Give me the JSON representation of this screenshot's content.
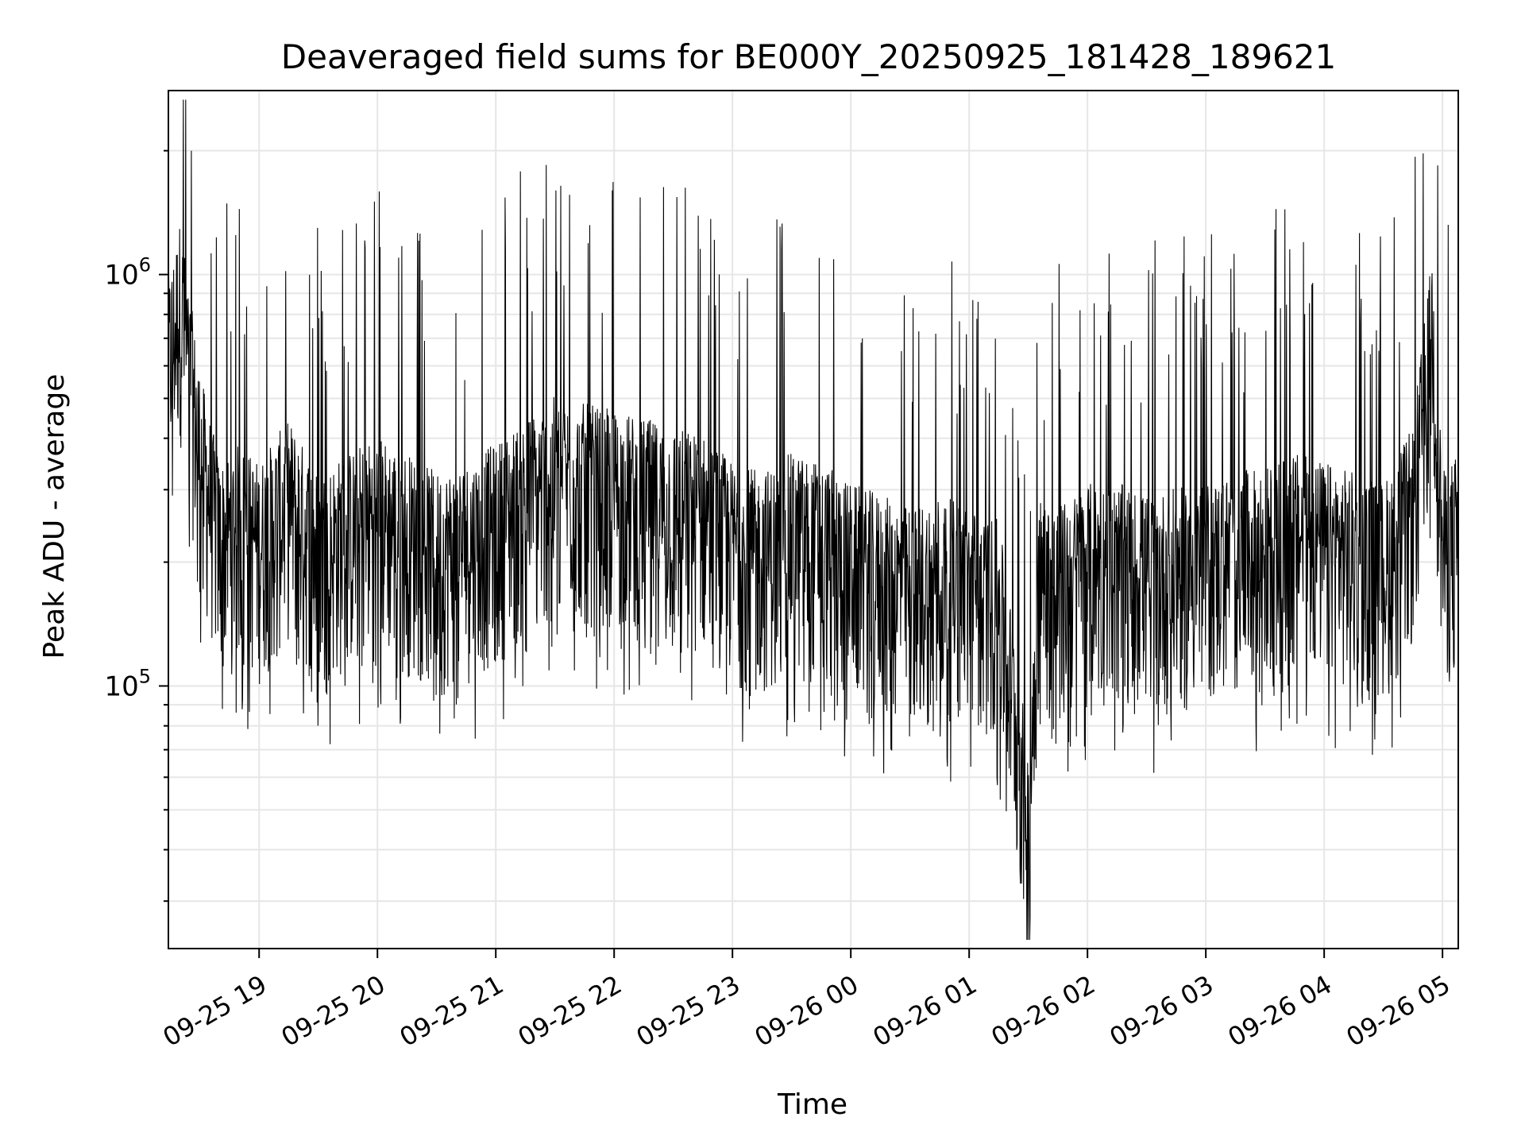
{
  "chart_data": {
    "type": "line",
    "title": "Deaveraged field sums for BE000Y_20250925_181428_189621",
    "xlabel": "Time",
    "ylabel": "Peak ADU - average",
    "yscale": "log",
    "grid": true,
    "color": "#000000",
    "x_ticks": [
      "09-25 19",
      "09-25 20",
      "09-25 21",
      "09-25 22",
      "09-25 23",
      "09-26 00",
      "09-26 01",
      "09-26 02",
      "09-26 03",
      "09-26 04",
      "09-26 05"
    ],
    "x_range": [
      "09-25 18:14",
      "09-26 05:08"
    ],
    "y_ticks": [
      {
        "base": "10",
        "exp": "5",
        "value": 100000
      },
      {
        "base": "10",
        "exp": "6",
        "value": 1000000
      }
    ],
    "ylim": [
      23000,
      2800000
    ],
    "series": [
      {
        "x": [
          "09-25 18:14",
          "09-25 18:20",
          "09-25 18:30",
          "09-25 18:40",
          "09-25 18:50",
          "09-25 19:00",
          "09-25 19:15",
          "09-25 19:30",
          "09-25 19:45",
          "09-25 20:00",
          "09-25 20:15",
          "09-25 20:30",
          "09-25 20:45",
          "09-25 21:00",
          "09-25 21:15",
          "09-25 21:30",
          "09-25 21:45",
          "09-25 22:00",
          "09-25 22:15",
          "09-25 22:30",
          "09-25 22:45",
          "09-25 23:00",
          "09-25 23:15",
          "09-25 23:30",
          "09-25 23:45",
          "09-26 00:00",
          "09-26 00:15",
          "09-26 00:30",
          "09-26 00:45",
          "09-26 01:00",
          "09-26 01:15",
          "09-26 01:25",
          "09-26 01:30",
          "09-26 01:35",
          "09-26 01:45",
          "09-26 02:00",
          "09-26 02:15",
          "09-26 02:30",
          "09-26 02:45",
          "09-26 03:00",
          "09-26 03:15",
          "09-26 03:30",
          "09-26 03:45",
          "09-26 04:00",
          "09-26 04:15",
          "09-26 04:30",
          "09-26 04:45",
          "09-26 04:55",
          "09-26 05:00",
          "09-26 05:08"
        ],
        "values": [
          500000,
          700000,
          300000,
          180000,
          200000,
          180000,
          230000,
          170000,
          190000,
          210000,
          190000,
          170000,
          180000,
          200000,
          230000,
          260000,
          250000,
          240000,
          230000,
          220000,
          210000,
          180000,
          170000,
          190000,
          180000,
          160000,
          150000,
          140000,
          150000,
          140000,
          130000,
          60000,
          35000,
          150000,
          140000,
          160000,
          160000,
          150000,
          155000,
          160000,
          170000,
          175000,
          190000,
          180000,
          170000,
          160000,
          220000,
          600000,
          170000,
          190000
        ]
      }
    ]
  }
}
